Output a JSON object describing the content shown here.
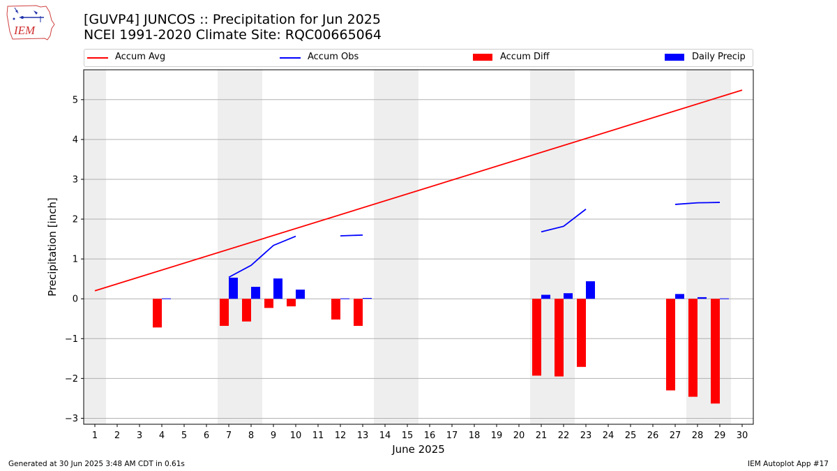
{
  "header": {
    "title_line1": "[GUVP4] JUNCOS :: Precipitation for Jun 2025",
    "title_line2": "NCEI 1991-2020 Climate Site: RQC00665064"
  },
  "logo": {
    "text": "IEM"
  },
  "footer": {
    "left": "Generated at 30 Jun 2025 3:48 AM CDT in 0.61s",
    "right": "IEM Autoplot App #17"
  },
  "colors": {
    "accum_avg": "#ff0000",
    "accum_obs": "#0000ff",
    "accum_diff": "#ff0000",
    "daily_precip": "#0000ff",
    "weekend_shade": "#eeeeee",
    "grid": "#b0b0b0"
  },
  "chart_data": {
    "type": "bar",
    "xlabel": "June 2025",
    "ylabel": "Precipitation [inch]",
    "ylim": [
      -3.15,
      5.75
    ],
    "yticks": [
      -3,
      -2,
      -1,
      0,
      1,
      2,
      3,
      4,
      5
    ],
    "ytick_labels": [
      "−3",
      "−2",
      "−1",
      "0",
      "1",
      "2",
      "3",
      "4",
      "5"
    ],
    "x_days": [
      1,
      2,
      3,
      4,
      5,
      6,
      7,
      8,
      9,
      10,
      11,
      12,
      13,
      14,
      15,
      16,
      17,
      18,
      19,
      20,
      21,
      22,
      23,
      24,
      25,
      26,
      27,
      28,
      29,
      30
    ],
    "shaded_weekend_days": [
      1,
      7,
      8,
      14,
      15,
      21,
      22,
      28,
      29
    ],
    "grid": "y",
    "legend_position": "top",
    "legend": [
      "Accum Avg",
      "Accum Obs",
      "Accum Diff",
      "Daily Precip"
    ],
    "series": [
      {
        "name": "Accum Avg",
        "kind": "line",
        "x": [
          1,
          30
        ],
        "values": [
          0.2,
          5.24
        ]
      },
      {
        "name": "Accum Obs",
        "kind": "line_segments",
        "segments": [
          {
            "x": [
              7,
              8,
              9,
              10
            ],
            "values": [
              0.54,
              0.84,
              1.34,
              1.57
            ]
          },
          {
            "x": [
              12,
              13
            ],
            "values": [
              1.58,
              1.6
            ]
          },
          {
            "x": [
              21,
              22,
              23
            ],
            "values": [
              1.68,
              1.82,
              2.25
            ]
          },
          {
            "x": [
              27,
              28,
              29
            ],
            "values": [
              2.37,
              2.41,
              2.42
            ]
          }
        ]
      },
      {
        "name": "Accum Diff",
        "kind": "bar",
        "x": [
          4,
          7,
          8,
          9,
          10,
          12,
          13,
          21,
          22,
          23,
          27,
          28,
          29
        ],
        "values": [
          -0.72,
          -0.68,
          -0.57,
          -0.23,
          -0.19,
          -0.52,
          -0.68,
          -1.93,
          -1.95,
          -1.71,
          -2.3,
          -2.46,
          -2.63
        ]
      },
      {
        "name": "Daily Precip",
        "kind": "bar",
        "x": [
          4,
          7,
          8,
          9,
          10,
          12,
          13,
          21,
          22,
          23,
          27,
          28,
          29
        ],
        "values": [
          0.01,
          0.53,
          0.3,
          0.51,
          0.23,
          0.01,
          0.02,
          0.1,
          0.14,
          0.44,
          0.12,
          0.04,
          0.01
        ]
      }
    ]
  }
}
